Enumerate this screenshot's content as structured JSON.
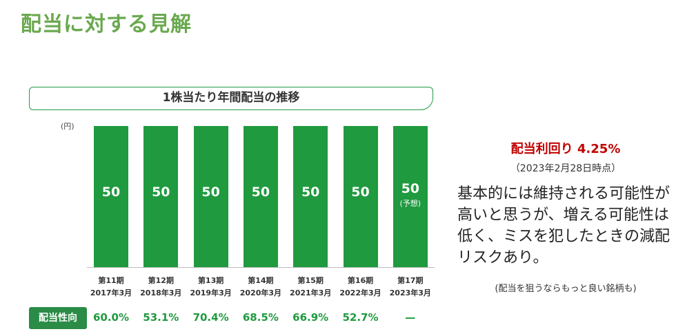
{
  "page_title": "配当に対する見解",
  "colors": {
    "accent_green": "#1f9a3f",
    "title_green": "#6aa84f",
    "red": "#c00000",
    "pill_green": "#2a8c46"
  },
  "chart_data": {
    "type": "bar",
    "title": "1株当たり年間配当の推移",
    "unit": "(円)",
    "categories": [
      {
        "period": "第11期",
        "fy": "2017年3月"
      },
      {
        "period": "第12期",
        "fy": "2018年3月"
      },
      {
        "period": "第13期",
        "fy": "2019年3月"
      },
      {
        "period": "第14期",
        "fy": "2020年3月"
      },
      {
        "period": "第15期",
        "fy": "2021年3月"
      },
      {
        "period": "第16期",
        "fy": "2022年3月"
      },
      {
        "period": "第17期",
        "fy": "2023年3月"
      }
    ],
    "values": [
      50,
      50,
      50,
      50,
      50,
      50,
      50
    ],
    "value_labels": [
      "50",
      "50",
      "50",
      "50",
      "50",
      "50",
      "50"
    ],
    "value_notes": [
      "",
      "",
      "",
      "",
      "",
      "",
      "(予想)"
    ],
    "ylim": [
      0,
      50
    ],
    "grid": false
  },
  "payout": {
    "label": "配当性向",
    "values": [
      "60.0%",
      "53.1%",
      "70.4%",
      "68.5%",
      "66.9%",
      "52.7%",
      "—"
    ]
  },
  "yield": {
    "title": "配当利回り 4.25%",
    "date": "（2023年2月28日時点）"
  },
  "comment": "基本的には維持される可能性が高いと思うが、増える可能性は低く、ミスを犯したときの減配リスクあり。",
  "note": "(配当を狙うならもっと良い銘柄も)"
}
